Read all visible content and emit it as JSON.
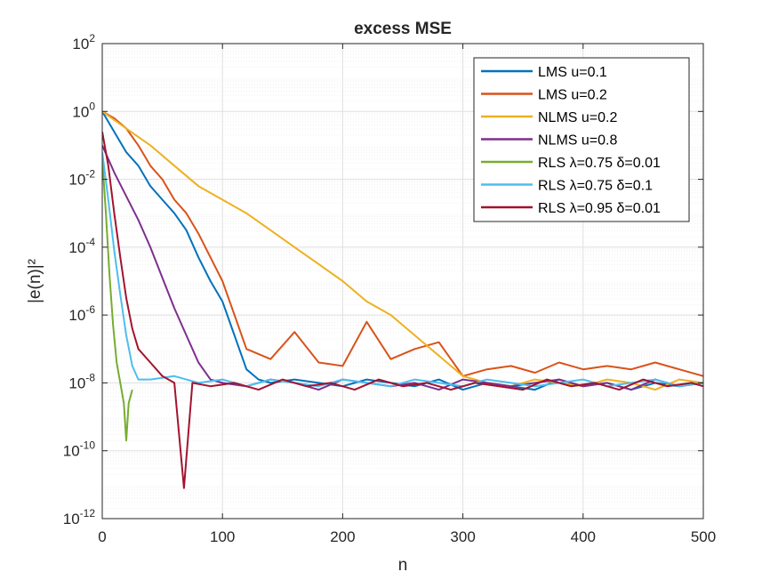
{
  "chart_data": {
    "type": "line",
    "title": "excess MSE",
    "xlabel": "n",
    "ylabel": "|e(n)|²",
    "xlim": [
      0,
      500
    ],
    "ylim_log10": [
      -12,
      2
    ],
    "yscale": "log",
    "grid": true,
    "minor_grid": true,
    "legend_position": "top-right",
    "x_ticks": [
      0,
      100,
      200,
      300,
      400,
      500
    ],
    "x_tick_labels": [
      "0",
      "100",
      "200",
      "300",
      "400",
      "500"
    ],
    "y_tick_exponents": [
      -12,
      -10,
      -8,
      -6,
      -4,
      -2,
      0,
      2
    ],
    "y_tick_base": "10",
    "colors": {
      "axis": "#262626",
      "grid": "#dfdfdf",
      "minor_grid": "#efefef"
    },
    "series": [
      {
        "label": "LMS u=0.1",
        "color": "#0072BD",
        "x": [
          0,
          10,
          20,
          30,
          40,
          50,
          60,
          70,
          80,
          90,
          100,
          110,
          120,
          130,
          140,
          160,
          180,
          200,
          220,
          240,
          260,
          280,
          300,
          320,
          340,
          360,
          380,
          400,
          420,
          440,
          460,
          480,
          500
        ],
        "y_log10": [
          0,
          -0.6,
          -1.2,
          -1.6,
          -2.2,
          -2.6,
          -3.0,
          -3.5,
          -4.3,
          -5.0,
          -5.6,
          -6.6,
          -7.6,
          -7.9,
          -8.0,
          -7.9,
          -8.0,
          -8.1,
          -7.9,
          -8.0,
          -8.1,
          -7.9,
          -8.2,
          -8.0,
          -8.1,
          -8.2,
          -7.9,
          -8.1,
          -8.0,
          -8.2,
          -8.0,
          -8.1,
          -8.0
        ]
      },
      {
        "label": "LMS u=0.2",
        "color": "#D95319",
        "x": [
          0,
          10,
          20,
          30,
          40,
          50,
          60,
          70,
          80,
          90,
          100,
          110,
          120,
          140,
          160,
          180,
          200,
          220,
          240,
          260,
          280,
          300,
          320,
          340,
          360,
          380,
          400,
          420,
          440,
          460,
          480,
          500
        ],
        "y_log10": [
          0,
          -0.2,
          -0.5,
          -1.0,
          -1.6,
          -2.0,
          -2.6,
          -3.0,
          -3.6,
          -4.3,
          -5.0,
          -6.0,
          -7.0,
          -7.3,
          -6.5,
          -7.4,
          -7.5,
          -6.2,
          -7.3,
          -7.0,
          -6.8,
          -7.8,
          -7.6,
          -7.5,
          -7.7,
          -7.4,
          -7.6,
          -7.5,
          -7.6,
          -7.4,
          -7.6,
          -7.8
        ]
      },
      {
        "label": "NLMS u=0.2",
        "color": "#EDB120",
        "x": [
          0,
          20,
          40,
          60,
          80,
          100,
          120,
          140,
          160,
          180,
          200,
          220,
          240,
          260,
          280,
          300,
          320,
          340,
          360,
          380,
          400,
          420,
          440,
          460,
          480,
          500
        ],
        "y_log10": [
          0,
          -0.5,
          -1.0,
          -1.6,
          -2.2,
          -2.6,
          -3.0,
          -3.5,
          -4.0,
          -4.5,
          -5.0,
          -5.6,
          -6.0,
          -6.6,
          -7.2,
          -7.8,
          -8.0,
          -8.1,
          -7.9,
          -8.0,
          -8.1,
          -7.9,
          -8.0,
          -8.2,
          -7.9,
          -8.0
        ]
      },
      {
        "label": "NLMS u=0.8",
        "color": "#7E2F8E",
        "x": [
          0,
          10,
          20,
          30,
          40,
          50,
          60,
          70,
          80,
          90,
          100,
          120,
          140,
          160,
          180,
          200,
          220,
          240,
          260,
          280,
          300,
          320,
          340,
          360,
          380,
          400,
          420,
          440,
          460,
          480,
          500
        ],
        "y_log10": [
          -1.0,
          -1.8,
          -2.5,
          -3.2,
          -4.0,
          -4.9,
          -5.8,
          -6.6,
          -7.4,
          -7.9,
          -8.0,
          -8.1,
          -7.9,
          -8.0,
          -8.2,
          -7.9,
          -8.0,
          -8.1,
          -8.0,
          -8.2,
          -7.9,
          -8.0,
          -8.1,
          -8.0,
          -7.9,
          -8.1,
          -8.0,
          -8.2,
          -7.9,
          -8.1,
          -8.0
        ]
      },
      {
        "label": "RLS λ=0.75 δ=0.01",
        "color": "#77AC30",
        "x": [
          0,
          3,
          6,
          9,
          12,
          15,
          18,
          20,
          22,
          25
        ],
        "y_log10": [
          -1.4,
          -3.0,
          -4.8,
          -6.3,
          -7.4,
          -8.0,
          -8.6,
          -9.7,
          -8.6,
          -8.2
        ]
      },
      {
        "label": "RLS λ=0.75 δ=0.1",
        "color": "#4DBEEE",
        "x": [
          0,
          5,
          10,
          15,
          20,
          25,
          30,
          40,
          60,
          80,
          100,
          120,
          140,
          160,
          180,
          200,
          220,
          240,
          260,
          280,
          300,
          320,
          340,
          360,
          380,
          400,
          420,
          440,
          460,
          480,
          500
        ],
        "y_log10": [
          -1.2,
          -2.6,
          -4.1,
          -5.4,
          -6.6,
          -7.5,
          -7.9,
          -7.9,
          -7.8,
          -8.0,
          -7.9,
          -8.1,
          -7.9,
          -8.0,
          -8.1,
          -7.9,
          -8.0,
          -8.1,
          -7.9,
          -8.0,
          -8.1,
          -7.9,
          -8.0,
          -8.1,
          -8.0,
          -7.9,
          -8.1,
          -8.0,
          -7.9,
          -8.1,
          -8.0
        ]
      },
      {
        "label": "RLS λ=0.95 δ=0.01",
        "color": "#A2142F",
        "x": [
          0,
          5,
          10,
          15,
          20,
          25,
          30,
          40,
          50,
          60,
          68,
          75,
          90,
          110,
          130,
          150,
          170,
          190,
          210,
          230,
          250,
          270,
          290,
          310,
          330,
          350,
          370,
          390,
          410,
          430,
          450,
          470,
          490,
          500
        ],
        "y_log10": [
          -0.6,
          -1.6,
          -3.0,
          -4.3,
          -5.5,
          -6.4,
          -7.0,
          -7.4,
          -7.8,
          -8.0,
          -11.1,
          -8.0,
          -8.1,
          -8.0,
          -8.2,
          -7.9,
          -8.1,
          -8.0,
          -8.2,
          -7.9,
          -8.1,
          -8.0,
          -8.2,
          -8.0,
          -8.1,
          -8.2,
          -7.9,
          -8.1,
          -8.0,
          -8.2,
          -7.9,
          -8.1,
          -8.0,
          -8.1
        ]
      }
    ]
  }
}
